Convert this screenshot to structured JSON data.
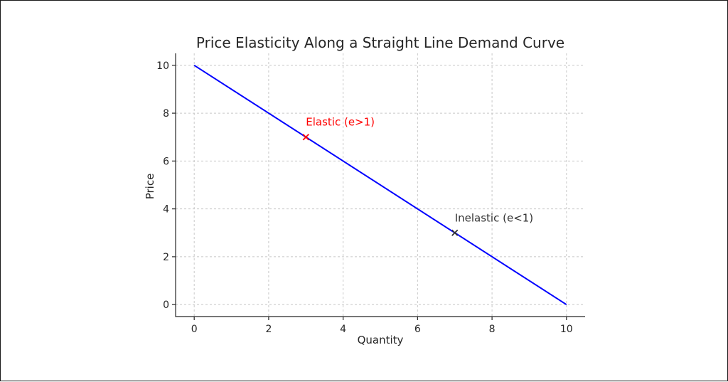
{
  "chart_data": {
    "type": "line",
    "title": "Price Elasticity Along a Straight Line Demand Curve",
    "xlabel": "Quantity",
    "ylabel": "Price",
    "xlim": [
      -0.5,
      10.5
    ],
    "ylim": [
      -0.5,
      10.5
    ],
    "xticks": [
      0,
      2,
      4,
      6,
      8,
      10
    ],
    "yticks": [
      0,
      2,
      4,
      6,
      8,
      10
    ],
    "grid": true,
    "series": [
      {
        "x": [
          0,
          10
        ],
        "y": [
          10,
          0
        ],
        "color": "#0000ff"
      }
    ],
    "points": [
      {
        "x": 3,
        "y": 7,
        "label": "Elastic (e>1)",
        "color": "#ff0000"
      },
      {
        "x": 7,
        "y": 3,
        "label": "Inelastic (e<1)",
        "color": "#333333"
      }
    ]
  }
}
